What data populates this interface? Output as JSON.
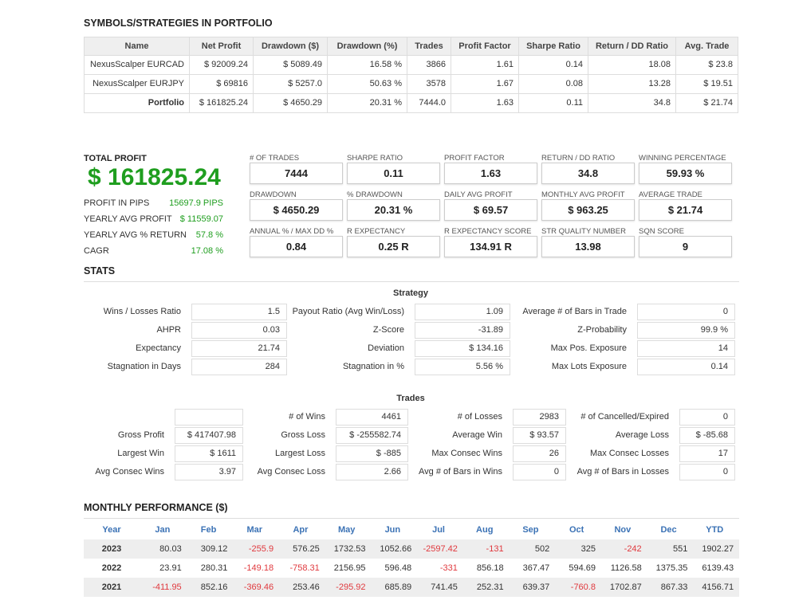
{
  "portfolio": {
    "title": "SYMBOLS/STRATEGIES IN PORTFOLIO",
    "headers": [
      "Name",
      "Net Profit",
      "Drawdown ($)",
      "Drawdown (%)",
      "Trades",
      "Profit Factor",
      "Sharpe Ratio",
      "Return / DD Ratio",
      "Avg. Trade"
    ],
    "rows": [
      [
        "NexusScalper EURCAD",
        "$ 92009.24",
        "$ 5089.49",
        "16.58 %",
        "3866",
        "1.61",
        "0.14",
        "18.08",
        "$ 23.8"
      ],
      [
        "NexusScalper EURJPY",
        "$ 69816",
        "$ 5257.0",
        "50.63 %",
        "3578",
        "1.67",
        "0.08",
        "13.28",
        "$ 19.51"
      ],
      [
        "Portfolio",
        "$ 161825.24",
        "$ 4650.29",
        "20.31 %",
        "7444.0",
        "1.63",
        "0.11",
        "34.8",
        "$ 21.74"
      ]
    ]
  },
  "total_profit": {
    "label": "TOTAL PROFIT",
    "value": "$ 161825.24",
    "items": [
      {
        "label": "PROFIT IN PIPS",
        "value": "15697.9 PIPS"
      },
      {
        "label": "YEARLY AVG PROFIT",
        "value": "$ 11559.07"
      },
      {
        "label": "YEARLY AVG % RETURN",
        "value": "57.8 %"
      },
      {
        "label": "CAGR",
        "value": "17.08 %"
      }
    ]
  },
  "metrics": [
    [
      {
        "label": "# OF TRADES",
        "value": "7444"
      },
      {
        "label": "SHARPE RATIO",
        "value": "0.11"
      },
      {
        "label": "PROFIT FACTOR",
        "value": "1.63"
      },
      {
        "label": "RETURN / DD RATIO",
        "value": "34.8"
      },
      {
        "label": "WINNING PERCENTAGE",
        "value": "59.93 %"
      }
    ],
    [
      {
        "label": "DRAWDOWN",
        "value": "$ 4650.29"
      },
      {
        "label": "% DRAWDOWN",
        "value": "20.31 %"
      },
      {
        "label": "DAILY AVG PROFIT",
        "value": "$ 69.57"
      },
      {
        "label": "MONTHLY AVG PROFIT",
        "value": "$ 963.25"
      },
      {
        "label": "AVERAGE TRADE",
        "value": "$ 21.74"
      }
    ],
    [
      {
        "label": "ANNUAL % / MAX DD %",
        "value": "0.84"
      },
      {
        "label": "R EXPECTANCY",
        "value": "0.25 R"
      },
      {
        "label": "R EXPECTANCY SCORE",
        "value": "134.91 R"
      },
      {
        "label": "STR QUALITY NUMBER",
        "value": "13.98"
      },
      {
        "label": "SQN SCORE",
        "value": "9"
      }
    ]
  ],
  "stats": {
    "title": "STATS",
    "strategy": {
      "title": "Strategy",
      "rows": [
        [
          {
            "label": "Wins / Losses Ratio",
            "value": "1.5"
          },
          {
            "label": "Payout Ratio (Avg Win/Loss)",
            "value": "1.09"
          },
          {
            "label": "Average # of Bars in Trade",
            "value": "0"
          }
        ],
        [
          {
            "label": "AHPR",
            "value": "0.03"
          },
          {
            "label": "Z-Score",
            "value": "-31.89"
          },
          {
            "label": "Z-Probability",
            "value": "99.9 %"
          }
        ],
        [
          {
            "label": "Expectancy",
            "value": "21.74"
          },
          {
            "label": "Deviation",
            "value": "$ 134.16"
          },
          {
            "label": "Max Pos. Exposure",
            "value": "14"
          }
        ],
        [
          {
            "label": "Stagnation in Days",
            "value": "284"
          },
          {
            "label": "Stagnation in %",
            "value": "5.56 %"
          },
          {
            "label": "Max Lots Exposure",
            "value": "0.14"
          }
        ]
      ]
    },
    "trades": {
      "title": "Trades",
      "rows": [
        [
          null,
          {
            "label": "# of Wins",
            "value": "4461"
          },
          {
            "label": "# of Losses",
            "value": "2983"
          },
          {
            "label": "# of Cancelled/Expired",
            "value": "0"
          }
        ],
        [
          {
            "label": "Gross Profit",
            "value": "$ 417407.98"
          },
          {
            "label": "Gross Loss",
            "value": "$ -255582.74"
          },
          {
            "label": "Average Win",
            "value": "$ 93.57"
          },
          {
            "label": "Average Loss",
            "value": "$ -85.68"
          }
        ],
        [
          {
            "label": "Largest Win",
            "value": "$ 1611"
          },
          {
            "label": "Largest Loss",
            "value": "$ -885"
          },
          {
            "label": "Max Consec Wins",
            "value": "26"
          },
          {
            "label": "Max Consec Losses",
            "value": "17"
          }
        ],
        [
          {
            "label": "Avg Consec Wins",
            "value": "3.97"
          },
          {
            "label": "Avg Consec Loss",
            "value": "2.66"
          },
          {
            "label": "Avg # of Bars in Wins",
            "value": "0"
          },
          {
            "label": "Avg # of Bars in Losses",
            "value": "0"
          }
        ]
      ]
    }
  },
  "monthly": {
    "title": "MONTHLY PERFORMANCE ($)",
    "headers": [
      "Year",
      "Jan",
      "Feb",
      "Mar",
      "Apr",
      "May",
      "Jun",
      "Jul",
      "Aug",
      "Sep",
      "Oct",
      "Nov",
      "Dec",
      "YTD"
    ],
    "rows": [
      {
        "year": 2023,
        "values": [
          80.03,
          309.12,
          -255.9,
          576.25,
          1732.53,
          1052.66,
          -2597.42,
          -131,
          502,
          325,
          -242,
          551,
          1902.27
        ]
      },
      {
        "year": 2022,
        "values": [
          23.91,
          280.31,
          -149.18,
          -758.31,
          2156.95,
          596.48,
          -331,
          856.18,
          367.47,
          594.69,
          1126.58,
          1375.35,
          6139.43
        ]
      },
      {
        "year": 2021,
        "values": [
          -411.95,
          852.16,
          -369.46,
          253.46,
          -295.92,
          685.89,
          741.45,
          252.31,
          639.37,
          -760.8,
          1702.87,
          867.33,
          4156.71
        ]
      }
    ]
  }
}
